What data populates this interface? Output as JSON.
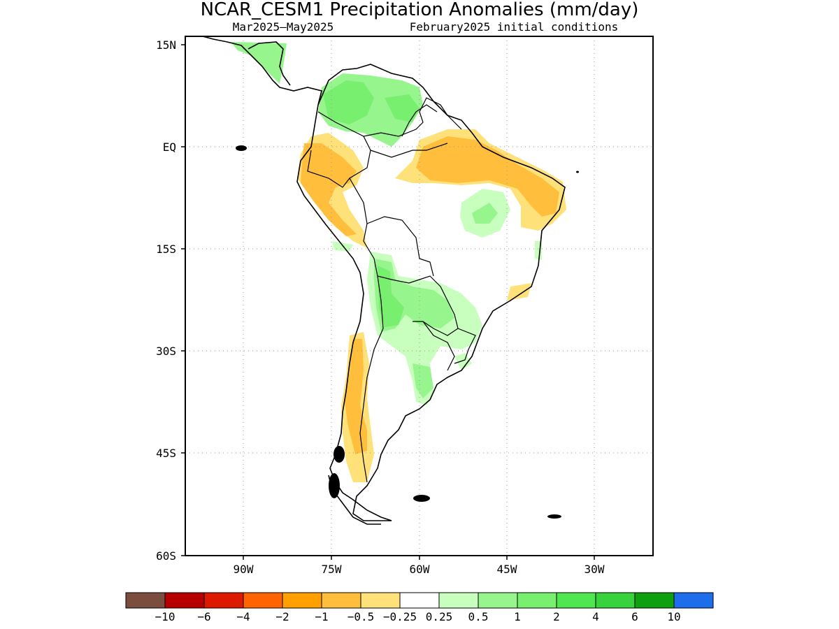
{
  "title": "NCAR_CESM1 Precipitation Anomalies (mm/day)",
  "subtitle_left": "Mar2025–May2025",
  "subtitle_right": "February2025 initial conditions",
  "map": {
    "region": "South America",
    "lon_range": [
      -100,
      -20
    ],
    "lat_range": [
      -60,
      15
    ],
    "lat_ticks": [
      "15N",
      "EQ",
      "15S",
      "30S",
      "45S",
      "60S"
    ],
    "lon_ticks": [
      "90W",
      "75W",
      "60W",
      "45W",
      "30W"
    ],
    "gridlines": true
  },
  "colorbar": {
    "colors": [
      "#7a4d3f",
      "#b60000",
      "#dc1a00",
      "#ff6400",
      "#ffa000",
      "#ffbf3c",
      "#ffe17a",
      "#ffffff",
      "#c8ffbe",
      "#96f58c",
      "#78ef6e",
      "#50e650",
      "#37d23c",
      "#0fa00f",
      "#1e6eeb"
    ],
    "labels": [
      "−10",
      "−6",
      "−4",
      "−2",
      "−1",
      "−0.5",
      "−0.25",
      "0.25",
      "0.5",
      "1",
      "2",
      "4",
      "6",
      "10"
    ]
  }
}
